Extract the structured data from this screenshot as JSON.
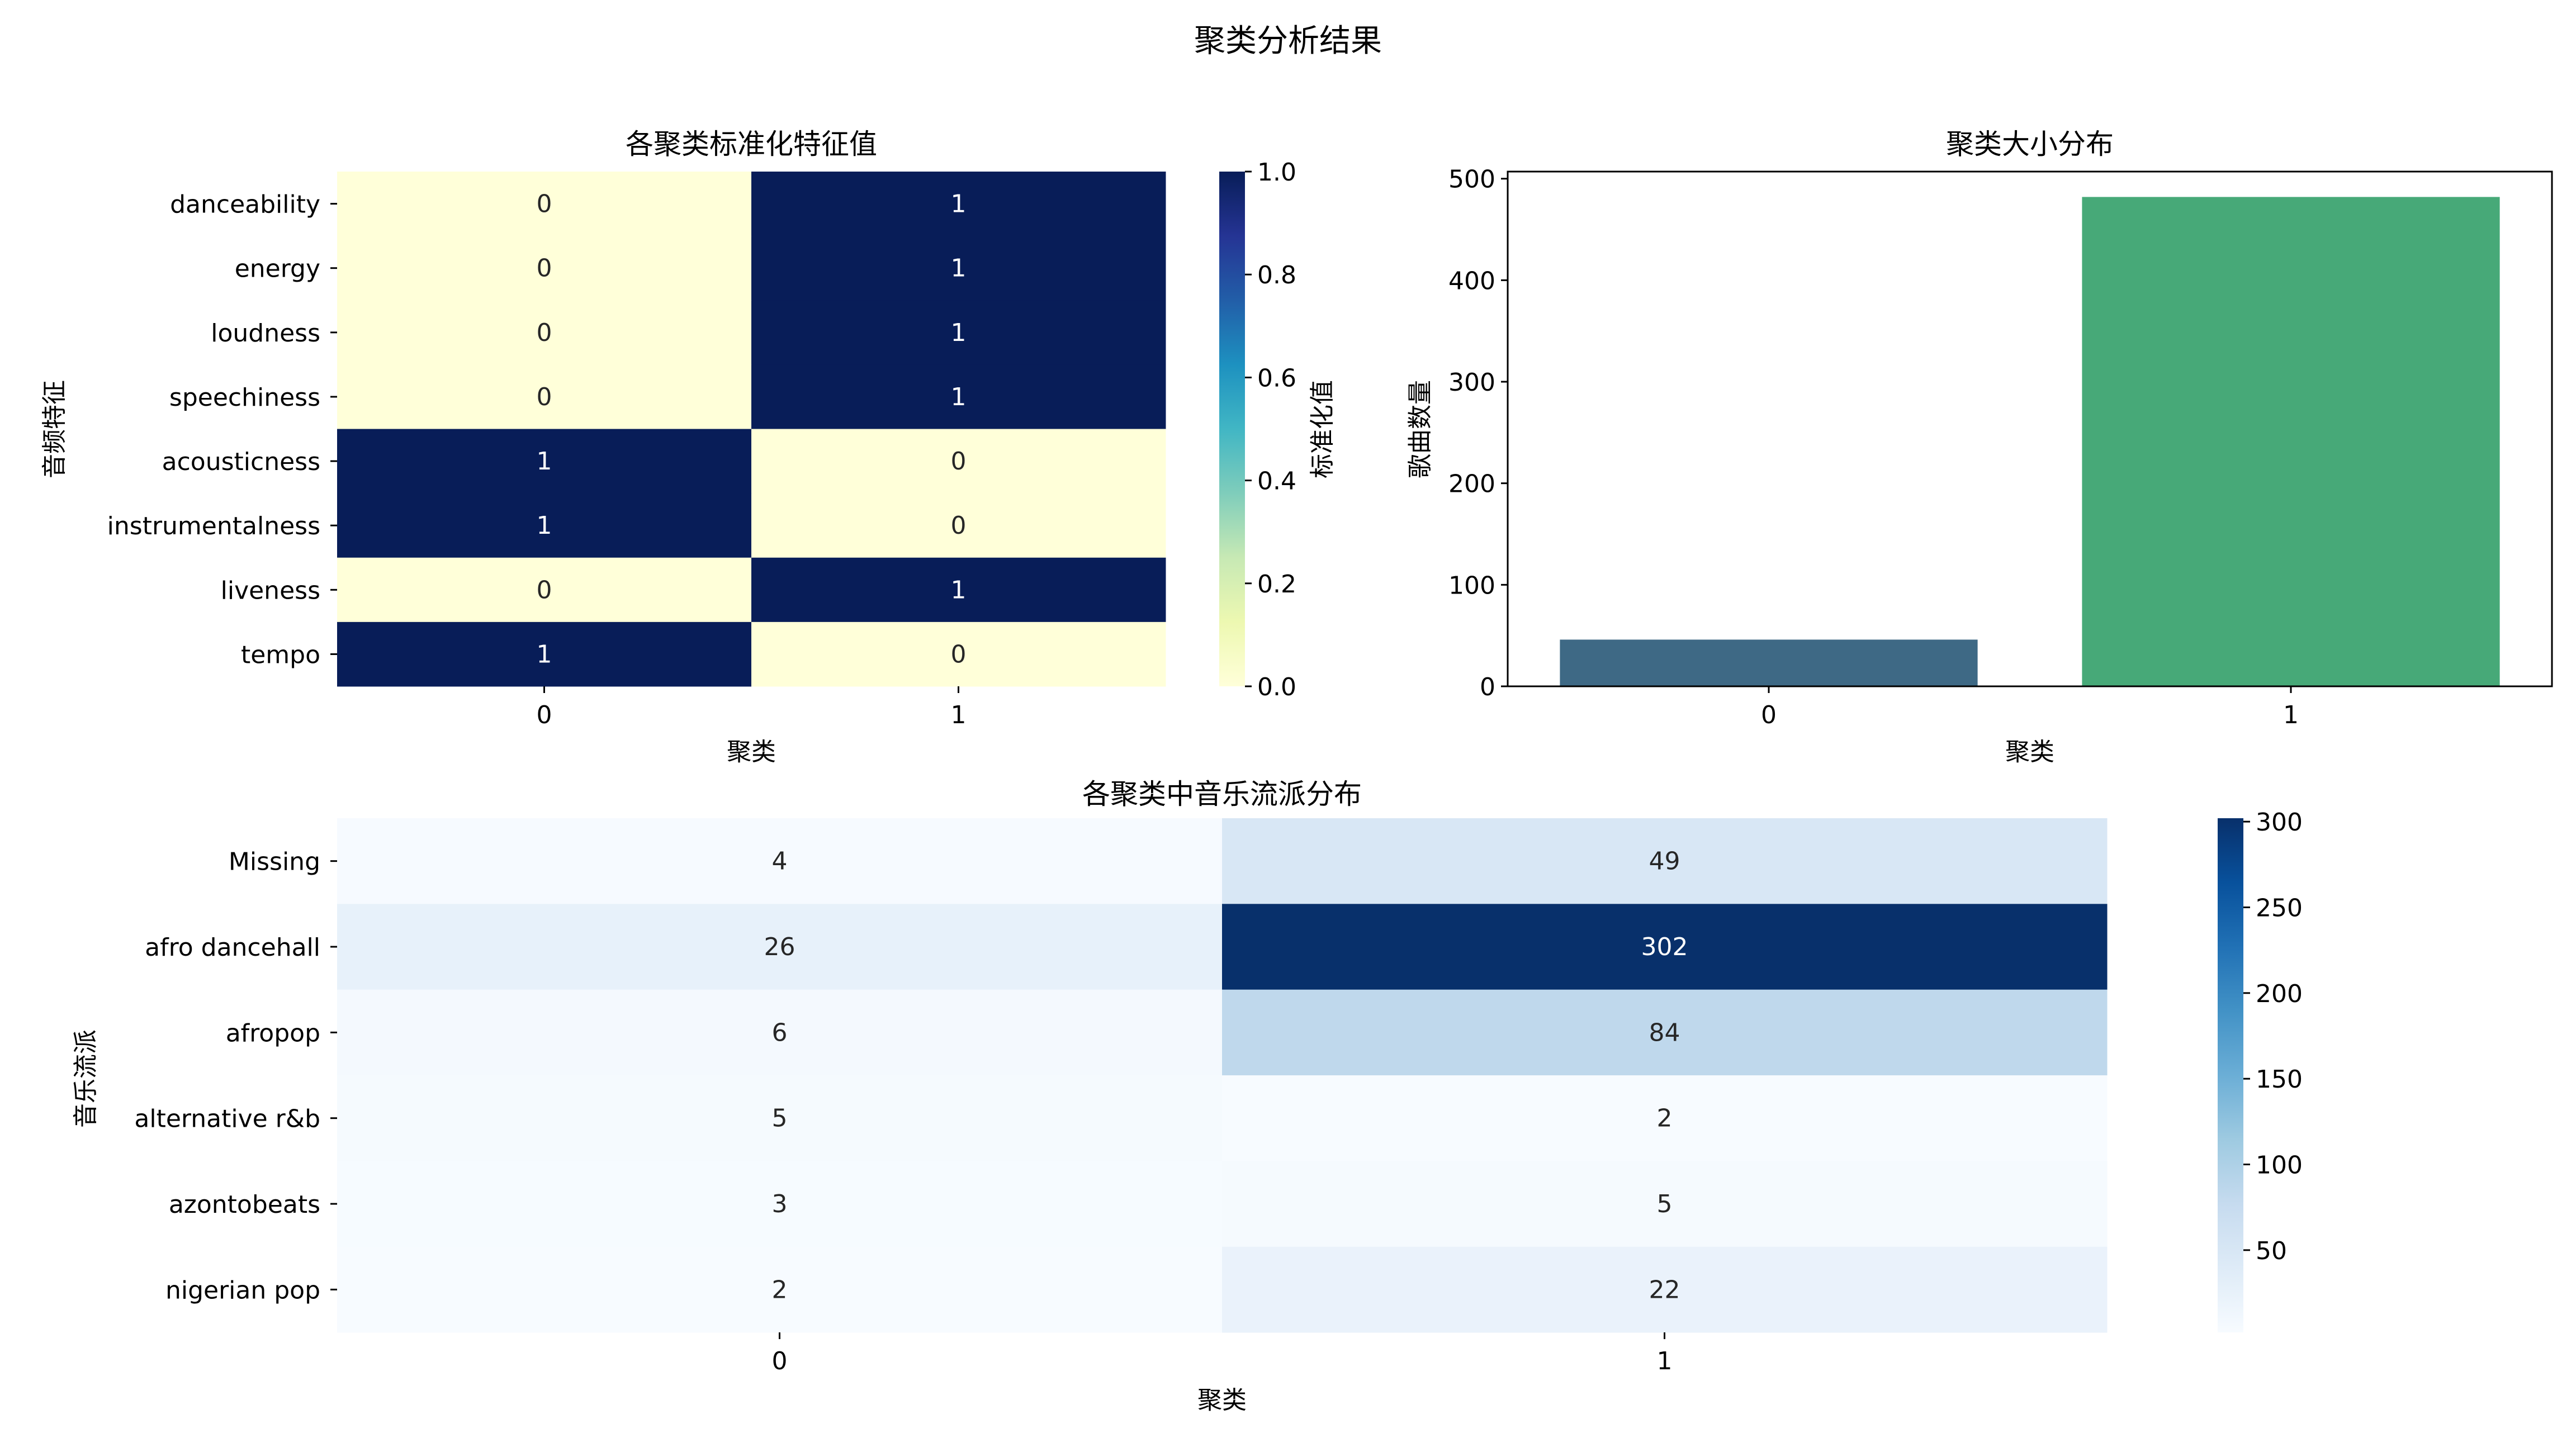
{
  "figure": {
    "title": "聚类分析结果"
  },
  "chart_data": [
    {
      "type": "heatmap",
      "title": "各聚类标准化特征值",
      "xlabel": "聚类",
      "ylabel": "音频特征",
      "x_categories": [
        "0",
        "1"
      ],
      "y_categories": [
        "danceability",
        "energy",
        "loudness",
        "speechiness",
        "acousticness",
        "instrumentalness",
        "liveness",
        "tempo"
      ],
      "values": [
        [
          0,
          1
        ],
        [
          0,
          1
        ],
        [
          0,
          1
        ],
        [
          0,
          1
        ],
        [
          1,
          0
        ],
        [
          1,
          0
        ],
        [
          0,
          1
        ],
        [
          1,
          0
        ]
      ],
      "annotations": true,
      "colormap": "YlGnBu",
      "colorbar": {
        "label": "标准化值",
        "range": [
          0,
          1
        ],
        "ticks": [
          "0.0",
          "0.2",
          "0.4",
          "0.6",
          "0.8",
          "1.0"
        ]
      },
      "colors": {
        "low": "#ffffd9",
        "high": "#081d58"
      }
    },
    {
      "type": "bar",
      "title": "聚类大小分布",
      "xlabel": "聚类",
      "ylabel": "歌曲数量",
      "categories": [
        "0",
        "1"
      ],
      "values": [
        46,
        482
      ],
      "ylim": [
        0,
        507
      ],
      "yticks": [
        0,
        100,
        200,
        300,
        400,
        500
      ],
      "colors": [
        "#3e6985",
        "#47a978"
      ],
      "grid": false
    },
    {
      "type": "heatmap",
      "title": "各聚类中音乐流派分布",
      "xlabel": "聚类",
      "ylabel": "音乐流派",
      "x_categories": [
        "0",
        "1"
      ],
      "y_categories": [
        "Missing",
        "afro dancehall",
        "afropop",
        "alternative r&b",
        "azontobeats",
        "nigerian pop"
      ],
      "values": [
        [
          4,
          49
        ],
        [
          26,
          302
        ],
        [
          6,
          84
        ],
        [
          5,
          2
        ],
        [
          3,
          5
        ],
        [
          2,
          22
        ]
      ],
      "annotations": true,
      "colormap": "Blues",
      "colorbar": {
        "range": [
          2,
          302
        ],
        "ticks": [
          "50",
          "100",
          "150",
          "200",
          "250",
          "300"
        ]
      },
      "colors": {
        "low": "#f7fbff",
        "high": "#08306b"
      }
    }
  ]
}
